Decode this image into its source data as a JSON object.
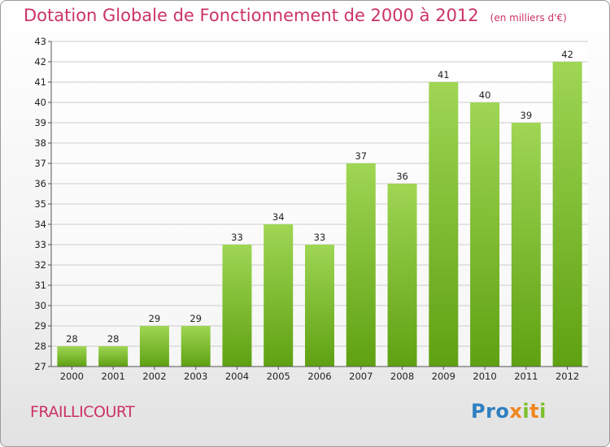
{
  "header": {
    "title": "Dotation Globale de Fonctionnement de 2000 à 2012",
    "unit": "(en milliers d'€)"
  },
  "footer": {
    "commune": "FRAILLICOURT",
    "logo": {
      "p1": "Pro",
      "x": "x",
      "i1": "i",
      "t": "t",
      "i2": "i"
    }
  },
  "colors": {
    "title": "#cc3366",
    "bar_light": "#9fd654",
    "bar_dark": "#5fa112",
    "grid": "#cccccc"
  },
  "chart_data": {
    "type": "bar",
    "title": "Dotation Globale de Fonctionnement de 2000 à 2012",
    "subtitle": "(en milliers d'€)",
    "xlabel": "",
    "ylabel": "",
    "categories": [
      "2000",
      "2001",
      "2002",
      "2003",
      "2004",
      "2005",
      "2006",
      "2007",
      "2008",
      "2009",
      "2010",
      "2011",
      "2012"
    ],
    "values": [
      28,
      28,
      29,
      29,
      33,
      34,
      33,
      37,
      36,
      41,
      40,
      39,
      42
    ],
    "ylim": [
      27,
      43
    ],
    "yticks": [
      27,
      28,
      29,
      30,
      31,
      32,
      33,
      34,
      35,
      36,
      37,
      38,
      39,
      40,
      41,
      42,
      43
    ],
    "grid": true,
    "legend": "none",
    "data_labels": true
  }
}
